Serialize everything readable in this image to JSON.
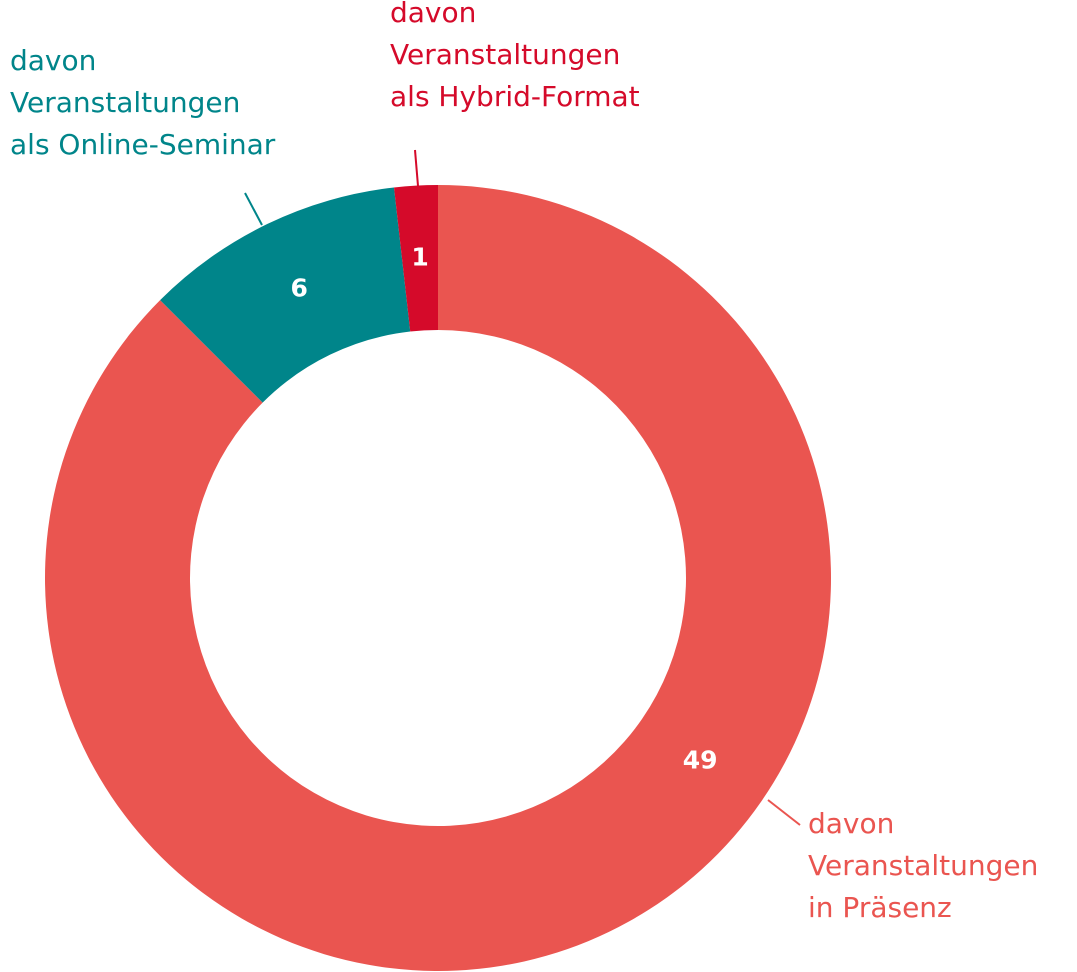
{
  "chart_data": {
    "type": "donut",
    "categories": [
      [
        "davon",
        "Veranstaltungen",
        "in Präsenz"
      ],
      [
        "davon",
        "Veranstaltungen",
        "als Online-Seminar"
      ],
      [
        "davon",
        "Veranstaltungen",
        "als Hybrid-Format"
      ]
    ],
    "values": [
      49,
      6,
      1
    ],
    "colors": [
      "#ea5550",
      "#00858a",
      "#d50a2a"
    ]
  }
}
